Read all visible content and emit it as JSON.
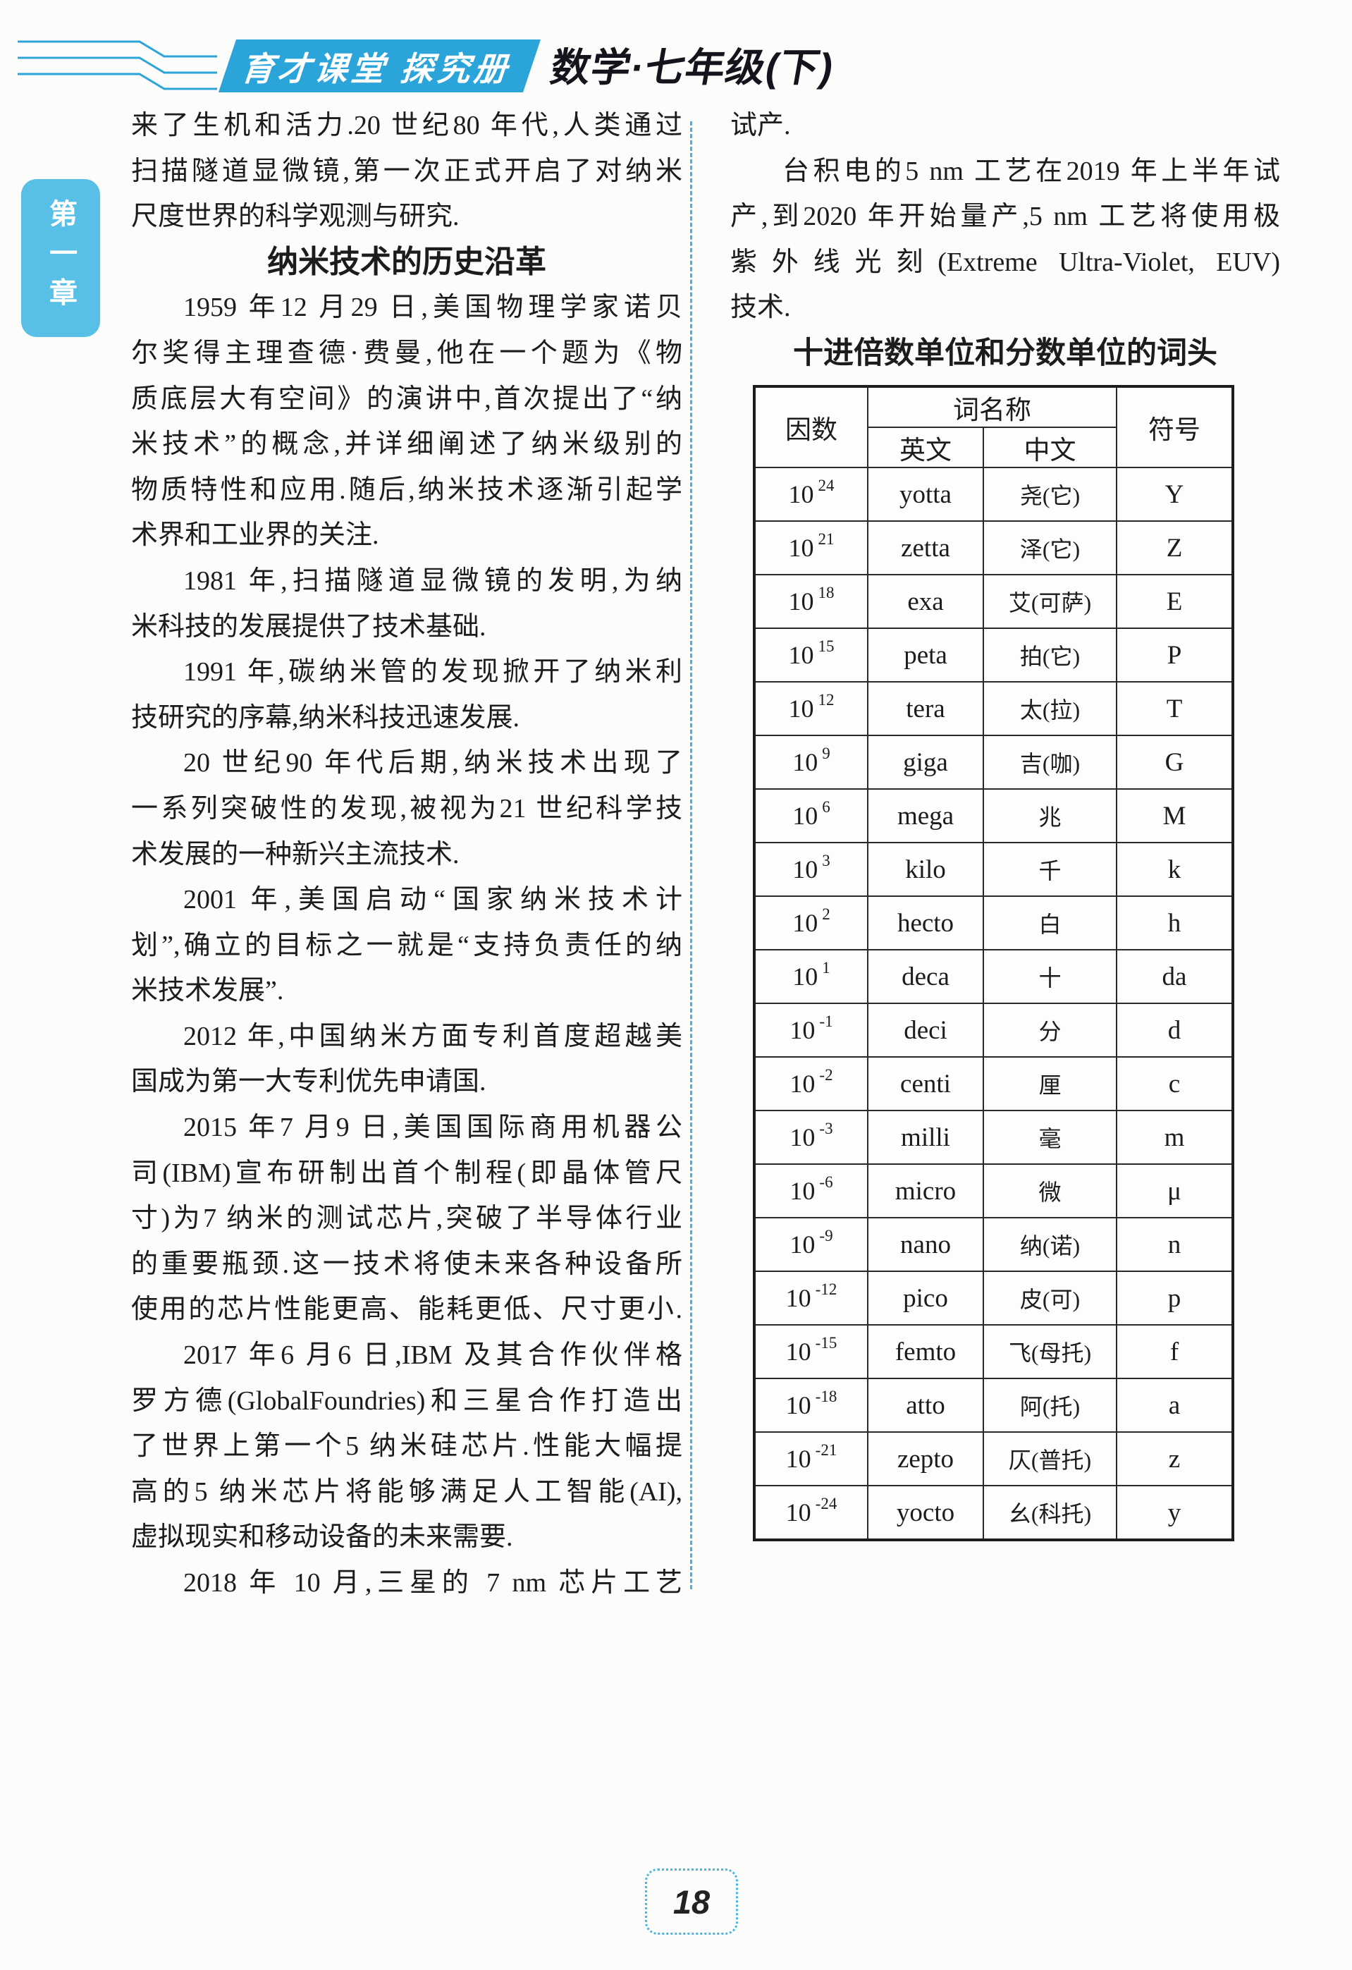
{
  "header": {
    "brand": "育才课堂 探究册",
    "subject": "数学·七年级(下)",
    "accent_color": "#2ba4da"
  },
  "sidebar": {
    "chapter": "第一章"
  },
  "footer": {
    "page_number": "18"
  },
  "left_column": {
    "lines": [
      {
        "t": "来了生机和活力.20 世纪80 年代,人类通过",
        "cls": "full"
      },
      {
        "t": "扫描隧道显微镜,第一次正式开启了对纳米",
        "cls": "full"
      },
      {
        "t": "尺度世界的科学观测与研究.",
        "cls": "short"
      },
      {
        "t": "纳米技术的历史沿革",
        "cls": "heading"
      },
      {
        "t": "1959 年12 月29 日,美国物理学家诺贝",
        "cls": "indent"
      },
      {
        "t": "尔奖得主理查德·费曼,他在一个题为《物",
        "cls": "full"
      },
      {
        "t": "质底层大有空间》的演讲中,首次提出了“纳",
        "cls": "full"
      },
      {
        "t": "米技术”的概念,并详细阐述了纳米级别的",
        "cls": "full"
      },
      {
        "t": "物质特性和应用.随后,纳米技术逐渐引起学",
        "cls": "full"
      },
      {
        "t": "术界和工业界的关注.",
        "cls": "short"
      },
      {
        "t": "1981 年,扫描隧道显微镜的发明,为纳",
        "cls": "indent"
      },
      {
        "t": "米科技的发展提供了技术基础.",
        "cls": "short"
      },
      {
        "t": "1991 年,碳纳米管的发现掀开了纳米利",
        "cls": "indent"
      },
      {
        "t": "技研究的序幕,纳米科技迅速发展.",
        "cls": "short"
      },
      {
        "t": "20 世纪90 年代后期,纳米技术出现了",
        "cls": "indent"
      },
      {
        "t": "一系列突破性的发现,被视为21 世纪科学技",
        "cls": "full"
      },
      {
        "t": "术发展的一种新兴主流技术.",
        "cls": "short"
      },
      {
        "t": "2001 年,美国启动“国家纳米技术计",
        "cls": "indent"
      },
      {
        "t": "划”,确立的目标之一就是“支持负责任的纳",
        "cls": "full"
      },
      {
        "t": "米技术发展”.",
        "cls": "short"
      },
      {
        "t": "2012 年,中国纳米方面专利首度超越美",
        "cls": "indent"
      },
      {
        "t": "国成为第一大专利优先申请国.",
        "cls": "short"
      },
      {
        "t": "2015 年7 月9 日,美国国际商用机器公",
        "cls": "indent"
      },
      {
        "t": "司(IBM)宣布研制出首个制程(即晶体管尺",
        "cls": "full"
      },
      {
        "t": "寸)为7 纳米的测试芯片,突破了半导体行业",
        "cls": "full"
      },
      {
        "t": "的重要瓶颈.这一技术将使未来各种设备所",
        "cls": "full"
      },
      {
        "t": "使用的芯片性能更高、能耗更低、尺寸更小.",
        "cls": "full"
      },
      {
        "t": "2017 年6 月6 日,IBM 及其合作伙伴格",
        "cls": "indent"
      },
      {
        "t": "罗方德(GlobalFoundries)和三星合作打造出",
        "cls": "full"
      },
      {
        "t": "了世界上第一个5 纳米硅芯片.性能大幅提",
        "cls": "full"
      },
      {
        "t": "高的5 纳米芯片将能够满足人工智能(AI),",
        "cls": "full"
      },
      {
        "t": "虚拟现实和移动设备的未来需要.",
        "cls": "short"
      },
      {
        "t": "2018 年 10 月,三星的 7 nm 芯片工艺",
        "cls": "indent"
      }
    ]
  },
  "right_column": {
    "lines": [
      {
        "t": "试产.",
        "cls": "short"
      },
      {
        "t": "台积电的5 nm 工艺在2019 年上半年试",
        "cls": "indent"
      },
      {
        "t": "产,到2020 年开始量产,5 nm 工艺将使用极",
        "cls": "full"
      },
      {
        "t": "紫外线光刻(Extreme Ultra-Violet, EUV)",
        "cls": "full"
      },
      {
        "t": "技术.",
        "cls": "short"
      }
    ],
    "table": {
      "title": "十进倍数单位和分数单位的词头",
      "col_factor": "因数",
      "col_word": "词名称",
      "col_en": "英文",
      "col_zh": "中文",
      "col_sym": "符号",
      "factor_base": "10",
      "rows": [
        {
          "exp": "24",
          "en": "yotta",
          "zh": "尧(它)",
          "sym": "Y"
        },
        {
          "exp": "21",
          "en": "zetta",
          "zh": "泽(它)",
          "sym": "Z"
        },
        {
          "exp": "18",
          "en": "exa",
          "zh": "艾(可萨)",
          "sym": "E"
        },
        {
          "exp": "15",
          "en": "peta",
          "zh": "拍(它)",
          "sym": "P"
        },
        {
          "exp": "12",
          "en": "tera",
          "zh": "太(拉)",
          "sym": "T"
        },
        {
          "exp": "9",
          "en": "giga",
          "zh": "吉(咖)",
          "sym": "G"
        },
        {
          "exp": "6",
          "en": "mega",
          "zh": "兆",
          "sym": "M"
        },
        {
          "exp": "3",
          "en": "kilo",
          "zh": "千",
          "sym": "k"
        },
        {
          "exp": "2",
          "en": "hecto",
          "zh": "白",
          "sym": "h"
        },
        {
          "exp": "1",
          "en": "deca",
          "zh": "十",
          "sym": "da"
        },
        {
          "exp": "-1",
          "en": "deci",
          "zh": "分",
          "sym": "d"
        },
        {
          "exp": "-2",
          "en": "centi",
          "zh": "厘",
          "sym": "c"
        },
        {
          "exp": "-3",
          "en": "milli",
          "zh": "毫",
          "sym": "m"
        },
        {
          "exp": "-6",
          "en": "micro",
          "zh": "微",
          "sym": "μ"
        },
        {
          "exp": "-9",
          "en": "nano",
          "zh": "纳(诺)",
          "sym": "n"
        },
        {
          "exp": "-12",
          "en": "pico",
          "zh": "皮(可)",
          "sym": "p"
        },
        {
          "exp": "-15",
          "en": "femto",
          "zh": "飞(母托)",
          "sym": "f"
        },
        {
          "exp": "-18",
          "en": "atto",
          "zh": "阿(托)",
          "sym": "a"
        },
        {
          "exp": "-21",
          "en": "zepto",
          "zh": "仄(普托)",
          "sym": "z"
        },
        {
          "exp": "-24",
          "en": "yocto",
          "zh": "幺(科托)",
          "sym": "y"
        }
      ]
    }
  }
}
